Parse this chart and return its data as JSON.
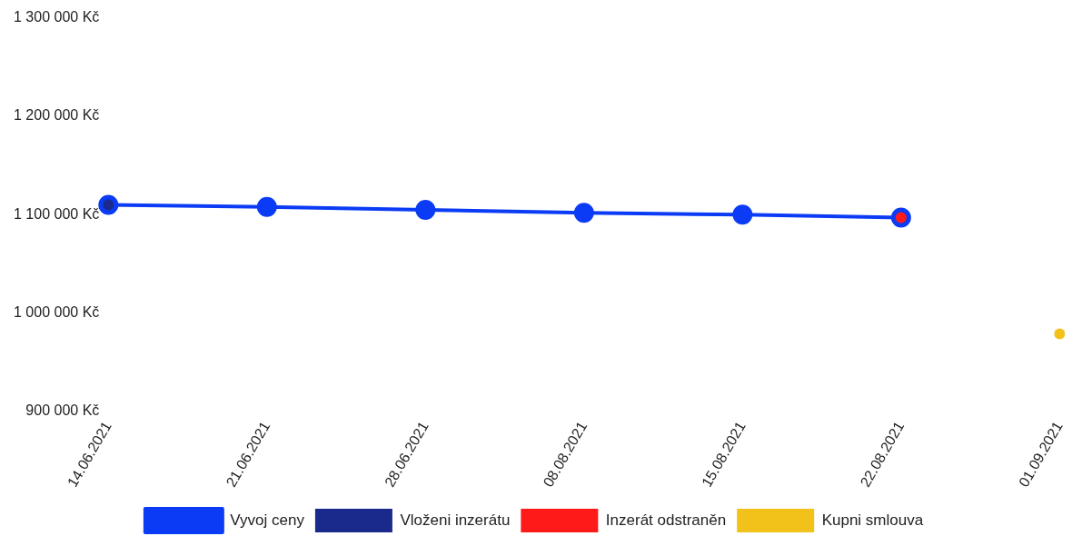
{
  "chart_data": {
    "type": "line",
    "categories": [
      "14.06.2021",
      "21.06.2021",
      "28.06.2021",
      "08.08.2021",
      "15.08.2021",
      "22.08.2021",
      "01.09.2021"
    ],
    "series": [
      {
        "name": "Vyvoj ceny",
        "color": "#0b3bf5",
        "values": [
          1110000,
          1108000,
          1105000,
          1102000,
          1100000,
          1097000,
          null
        ]
      },
      {
        "name": "Vloženi inzerátu",
        "type": "scatter",
        "color": "#1a2a8c",
        "values": [
          1110000,
          null,
          null,
          null,
          null,
          null,
          null
        ]
      },
      {
        "name": "Inzerát odstraněn",
        "type": "scatter",
        "color": "#ff1a1a",
        "values": [
          null,
          null,
          null,
          null,
          null,
          1097000,
          null
        ]
      },
      {
        "name": "Kupni smlouva",
        "type": "scatter",
        "color": "#f2c21a",
        "values": [
          null,
          null,
          null,
          null,
          null,
          null,
          979000
        ]
      }
    ],
    "ylim": [
      900000,
      1300000
    ],
    "yticks": [
      {
        "value": 900000,
        "label": "900 000 Kč"
      },
      {
        "value": 1000000,
        "label": "1 000 000 Kč"
      },
      {
        "value": 1100000,
        "label": "1 100 000 Kč"
      },
      {
        "value": 1200000,
        "label": "1 200 000 Kč"
      },
      {
        "value": 1300000,
        "label": "1 300 000 Kč"
      }
    ],
    "grid": false,
    "legend": "bottom",
    "marker": "circle",
    "line_style": "solid"
  }
}
